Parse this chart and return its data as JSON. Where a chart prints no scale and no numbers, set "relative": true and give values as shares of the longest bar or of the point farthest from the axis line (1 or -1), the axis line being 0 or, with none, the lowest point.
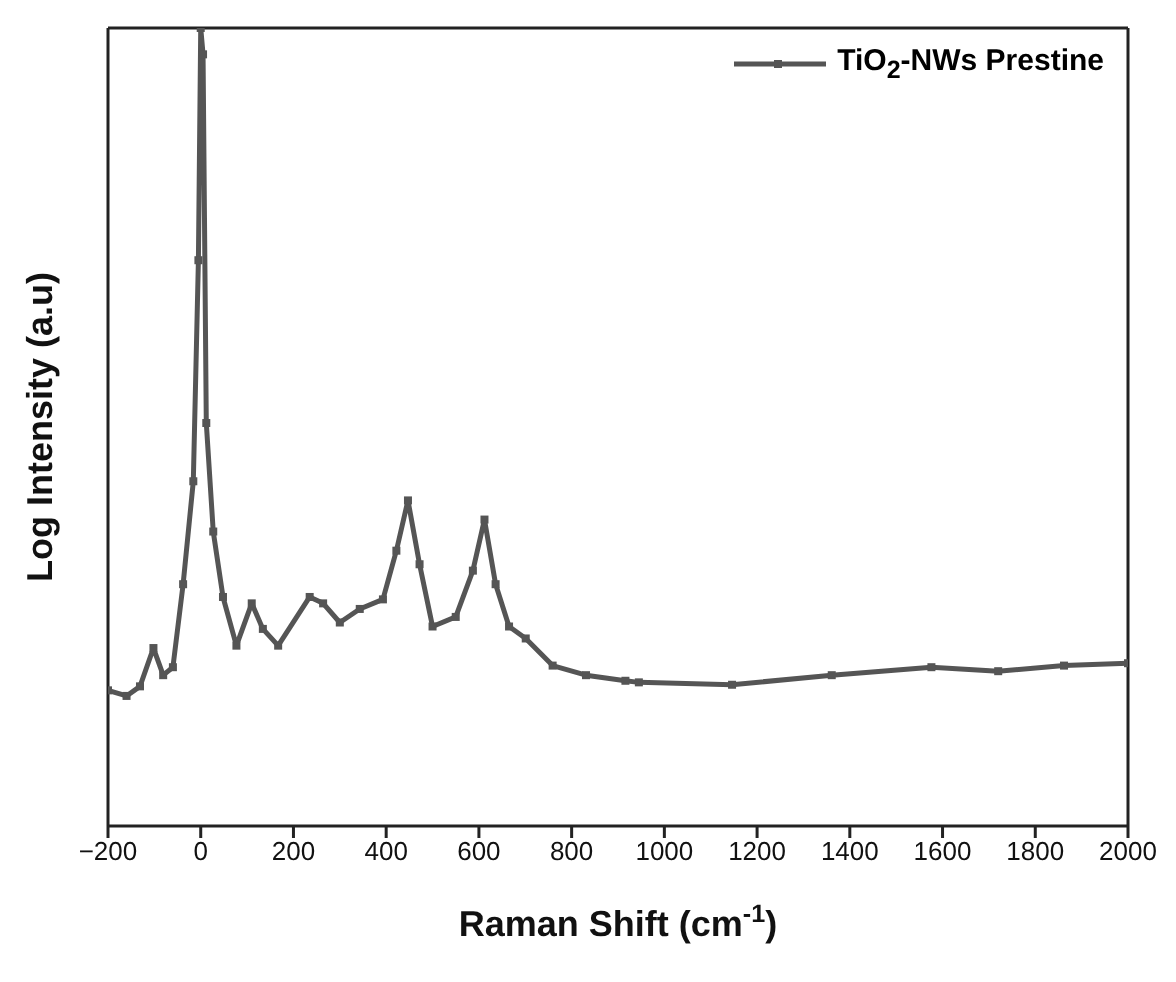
{
  "chart_data": {
    "type": "line",
    "xlabel": "Raman Shift (cm$^{-1}$)",
    "ylabel": "Log Intensity (a.u)",
    "relative": true,
    "xlim": [
      -200,
      2000
    ],
    "xticks": [
      -200,
      0,
      200,
      400,
      600,
      800,
      1000,
      1200,
      1400,
      1600,
      1800,
      2000
    ],
    "x": [
      -200,
      -160,
      -131,
      -102,
      -81,
      -60,
      -38,
      -16,
      -5,
      0,
      5,
      12,
      27,
      48,
      77,
      110,
      134,
      167,
      235,
      264,
      300,
      343,
      393,
      422,
      447,
      472,
      500,
      550,
      587,
      612,
      636,
      665,
      701,
      759,
      831,
      916,
      945,
      1146,
      1361,
      1576,
      1720,
      1862,
      2000
    ],
    "series": [
      {
        "name": "TiO$_{2}$-NWs Prestine",
        "color": "#555555",
        "values": [
          0.17,
          0.163,
          0.175,
          0.223,
          0.189,
          0.199,
          0.303,
          0.432,
          0.709,
          1,
          0.967,
          0.505,
          0.369,
          0.287,
          0.226,
          0.279,
          0.247,
          0.226,
          0.287,
          0.279,
          0.255,
          0.272,
          0.284,
          0.345,
          0.408,
          0.328,
          0.25,
          0.262,
          0.32,
          0.384,
          0.303,
          0.25,
          0.235,
          0.201,
          0.189,
          0.182,
          0.18,
          0.177,
          0.189,
          0.199,
          0.194,
          0.201,
          0.204
        ]
      }
    ],
    "legend": "top right",
    "marker": "square",
    "line_style": "solid",
    "grid": false
  }
}
